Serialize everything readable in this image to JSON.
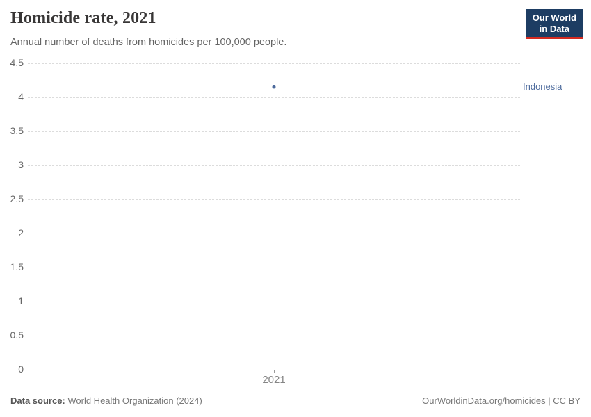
{
  "header": {
    "title": "Homicide rate, 2021",
    "subtitle": "Annual number of deaths from homicides per 100,000 people.",
    "logo": {
      "line1": "Our World",
      "line2": "in Data",
      "bg_color": "#1d3d63",
      "accent_color": "#d42b21"
    }
  },
  "chart_data": {
    "type": "scatter",
    "title": "Homicide rate, 2021",
    "x": [
      2021
    ],
    "series": [
      {
        "name": "Indonesia",
        "values": [
          4.15
        ],
        "color": "#4c6a9c"
      }
    ],
    "xlabel": "",
    "ylabel": "",
    "ylim": [
      0,
      4.5
    ],
    "yticks": [
      0,
      0.5,
      1,
      1.5,
      2,
      2.5,
      3,
      3.5,
      4,
      4.5
    ],
    "xticks": [
      "2021"
    ],
    "grid": "horizontal-dashed",
    "legend_position": "right-inline-label",
    "colors": {
      "gridline": "#dcdcdc",
      "axis_line": "#999999",
      "tick_label": "#666666",
      "xtick_label": "#858585"
    }
  },
  "footer": {
    "source_label": "Data source:",
    "source_value": " World Health Organization (2024)",
    "credit": "OurWorldinData.org/homicides | CC BY"
  }
}
